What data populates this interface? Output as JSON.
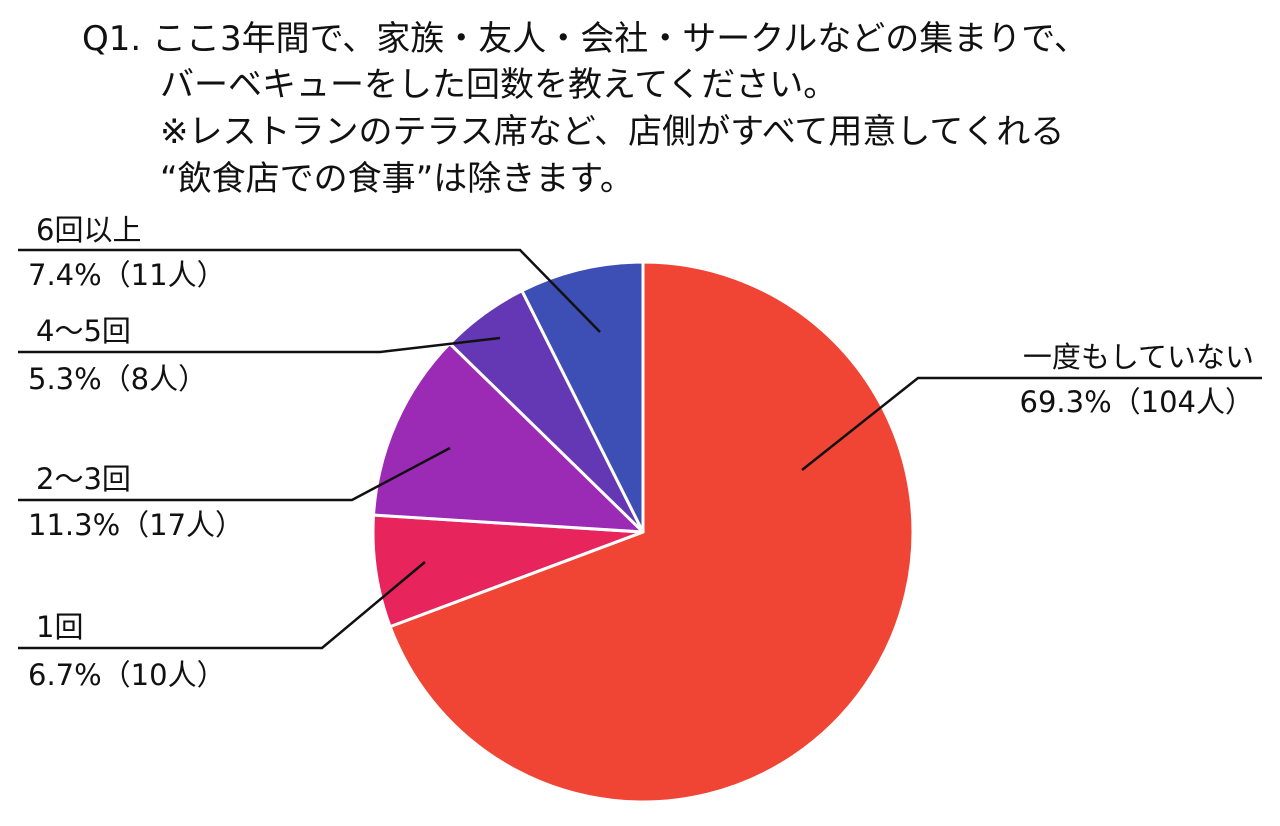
{
  "title_lines": [
    "Q1. ここ3年間で、家族・友人・会社・サークルなどの集まりで、",
    "バーベキューをした回数を教えてください。",
    "※レストランのテラス席など、店側がすべて用意してくれる",
    "“飲食店での食事”は除きます。"
  ],
  "chart_data": {
    "type": "pie",
    "start": "12 o'clock",
    "direction": "clockwise",
    "slices": [
      {
        "label": "一度もしていない",
        "percent": 69.3,
        "count": 104,
        "value_text": "69.3%（104人）",
        "color": "#f04535"
      },
      {
        "label": "1回",
        "percent": 6.7,
        "count": 10,
        "value_text": "6.7%（10人）",
        "color": "#e8245d"
      },
      {
        "label": "2～3回",
        "percent": 11.3,
        "count": 17,
        "value_text": "11.3%（17人）",
        "color": "#9b2ab5"
      },
      {
        "label": "4～5回",
        "percent": 5.3,
        "count": 8,
        "value_text": "5.3%（8人）",
        "color": "#6438b5"
      },
      {
        "label": "6回以上",
        "percent": 7.4,
        "count": 11,
        "value_text": "7.4%（11人）",
        "color": "#3d4fb5"
      }
    ]
  }
}
